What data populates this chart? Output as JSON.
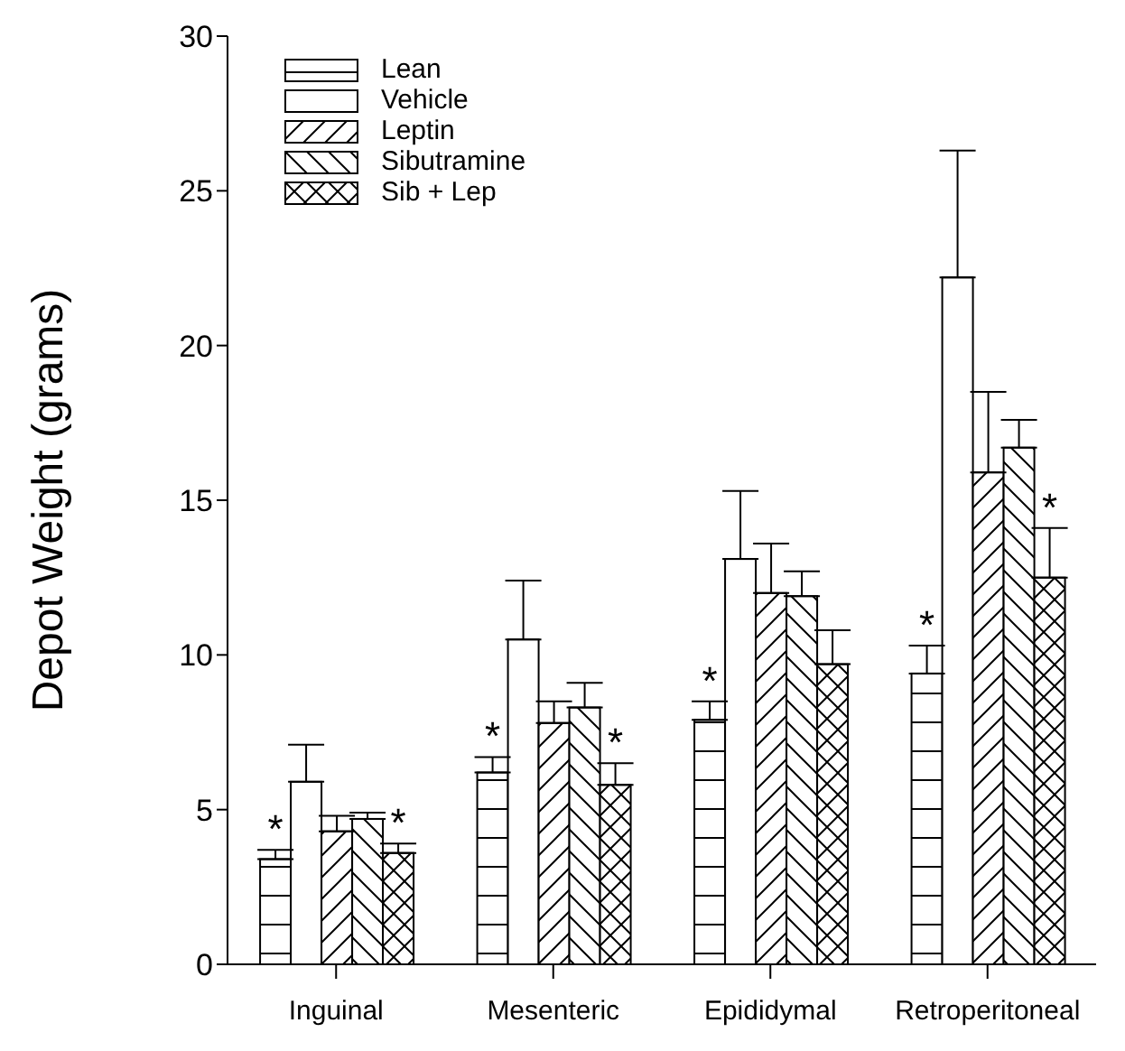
{
  "chart_data": {
    "type": "bar",
    "ylabel": "Depot Weight (grams)",
    "categories": [
      "Inguinal",
      "Mesenteric",
      "Epididymal",
      "Retroperitoneal"
    ],
    "series": [
      {
        "name": "Lean",
        "color": "#000000",
        "values": [
          3.4,
          6.2,
          7.9,
          9.4
        ],
        "errors": [
          [
            3.4,
            3.7
          ],
          [
            6.2,
            6.7
          ],
          [
            7.9,
            8.5
          ],
          [
            9.4,
            10.3
          ]
        ],
        "value_labels": [
          "*",
          "*",
          "*",
          "*"
        ]
      },
      {
        "name": "Vehicle",
        "color": "#000000",
        "values": [
          5.9,
          10.5,
          13.1,
          22.2
        ],
        "errors": [
          [
            5.9,
            7.1
          ],
          [
            10.5,
            12.4
          ],
          [
            13.1,
            15.3
          ],
          [
            22.2,
            26.3
          ]
        ]
      },
      {
        "name": "Leptin",
        "color": "#000000",
        "values": [
          4.3,
          7.8,
          12.0,
          15.9
        ],
        "errors": [
          [
            4.3,
            4.8
          ],
          [
            7.8,
            8.5
          ],
          [
            12.0,
            13.6
          ],
          [
            15.9,
            18.5
          ]
        ]
      },
      {
        "name": "Sibutramine",
        "color": "#000000",
        "values": [
          4.7,
          8.3,
          11.9,
          16.7
        ],
        "errors": [
          [
            4.7,
            4.9
          ],
          [
            8.3,
            9.1
          ],
          [
            11.9,
            12.7
          ],
          [
            16.7,
            17.6
          ]
        ]
      },
      {
        "name": "Sib + Lep",
        "color": "#000000",
        "values": [
          3.6,
          5.8,
          9.7,
          12.5
        ],
        "errors": [
          [
            3.6,
            3.9
          ],
          [
            5.8,
            6.5
          ],
          [
            9.7,
            10.8
          ],
          [
            12.5,
            14.1
          ]
        ],
        "value_labels": [
          "*",
          "*",
          null,
          "*"
        ]
      }
    ],
    "ylim": [
      0,
      30
    ],
    "yticks": [
      0,
      5,
      10,
      15,
      20,
      25,
      30
    ],
    "grid": false,
    "legend": "top left"
  }
}
